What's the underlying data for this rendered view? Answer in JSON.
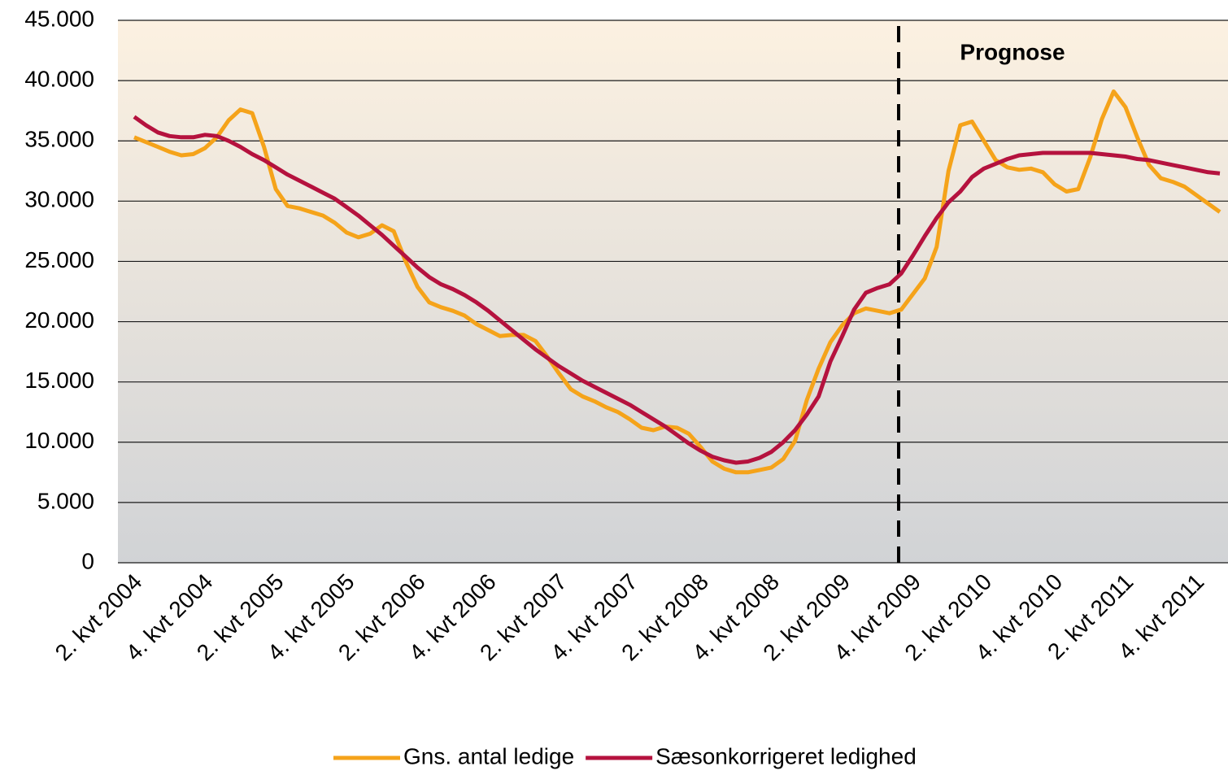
{
  "chart_data": {
    "type": "line",
    "annotations": [
      "Prognose"
    ],
    "categories": [
      "2. kvt 2004",
      null,
      null,
      null,
      null,
      null,
      "4. kvt 2004",
      null,
      null,
      null,
      null,
      null,
      "2. kvt 2005",
      null,
      null,
      null,
      null,
      null,
      "4. kvt 2005",
      null,
      null,
      null,
      null,
      null,
      "2. kvt 2006",
      null,
      null,
      null,
      null,
      null,
      "4. kvt 2006",
      null,
      null,
      null,
      null,
      null,
      "2. kvt 2007",
      null,
      null,
      null,
      null,
      null,
      "4. kvt 2007",
      null,
      null,
      null,
      null,
      null,
      "2. kvt 2008",
      null,
      null,
      null,
      null,
      null,
      "4. kvt 2008",
      null,
      null,
      null,
      null,
      null,
      "2. kvt 2009",
      null,
      null,
      null,
      null,
      null,
      "4. kvt 2009",
      null,
      null,
      null,
      null,
      null,
      "2. kvt 2010",
      null,
      null,
      null,
      null,
      null,
      "4. kvt 2010",
      null,
      null,
      null,
      null,
      null,
      "2. kvt 2011",
      null,
      null,
      null,
      null,
      null,
      "4. kvt 2011",
      null,
      null
    ],
    "series": [
      {
        "name": "Gns. antal ledige",
        "color": "#f5a31a",
        "values": [
          35300,
          34900,
          34500,
          34100,
          33800,
          33900,
          34400,
          35300,
          36700,
          37600,
          37300,
          34500,
          31000,
          29600,
          29400,
          29100,
          28800,
          28200,
          27400,
          27000,
          27300,
          28000,
          27500,
          25000,
          22900,
          21600,
          21200,
          20900,
          20500,
          19800,
          19300,
          18800,
          18900,
          18900,
          18400,
          17100,
          15700,
          14400,
          13800,
          13400,
          12900,
          12500,
          11900,
          11200,
          11000,
          11300,
          11200,
          10700,
          9600,
          8400,
          7800,
          7500,
          7500,
          7700,
          7900,
          8600,
          10100,
          13500,
          16100,
          18300,
          19700,
          20700,
          21100,
          20900,
          20700,
          21000,
          22300,
          23600,
          26200,
          32500,
          36300,
          36600,
          35000,
          33400,
          32800,
          32600,
          32700,
          32400,
          31400,
          30800,
          31000,
          33600,
          36800,
          39100,
          37800,
          35300,
          33000,
          31900,
          31600,
          31200,
          30500,
          29800,
          29100
        ]
      },
      {
        "name": "Sæsonkorrigeret ledighed",
        "color": "#b5123e",
        "values": [
          37000,
          36300,
          35700,
          35400,
          35300,
          35300,
          35500,
          35400,
          35000,
          34500,
          33900,
          33400,
          32800,
          32200,
          31700,
          31200,
          30700,
          30200,
          29500,
          28800,
          28000,
          27200,
          26300,
          25400,
          24500,
          23700,
          23100,
          22700,
          22200,
          21600,
          20900,
          20100,
          19300,
          18500,
          17700,
          17000,
          16300,
          15700,
          15100,
          14600,
          14100,
          13600,
          13100,
          12500,
          11900,
          11300,
          10600,
          9900,
          9300,
          8800,
          8500,
          8300,
          8400,
          8700,
          9200,
          10000,
          11000,
          12300,
          13800,
          16700,
          18800,
          21000,
          22400,
          22800,
          23100,
          24000,
          25500,
          27100,
          28600,
          29900,
          30800,
          32000,
          32700,
          33100,
          33500,
          33800,
          33900,
          34000,
          34000,
          34000,
          34000,
          34000,
          33900,
          33800,
          33700,
          33500,
          33400,
          33200,
          33000,
          32800,
          32600,
          32400,
          32300
        ]
      }
    ],
    "ylim": [
      0,
      45000
    ],
    "yticks": [
      0,
      {
        "value": 5000,
        "label": "5.000"
      },
      {
        "value": 10000,
        "label": "10.000"
      },
      {
        "value": 15000,
        "label": "15.000"
      },
      {
        "value": 20000,
        "label": "20.000"
      },
      {
        "value": 25000,
        "label": "25.000"
      },
      {
        "value": 30000,
        "label": "30.000"
      },
      {
        "value": 35000,
        "label": "35.000"
      },
      {
        "value": 40000,
        "label": "40.000"
      },
      {
        "value": 45000,
        "label": "45.000"
      }
    ],
    "grid": true,
    "legend": "bottom"
  }
}
